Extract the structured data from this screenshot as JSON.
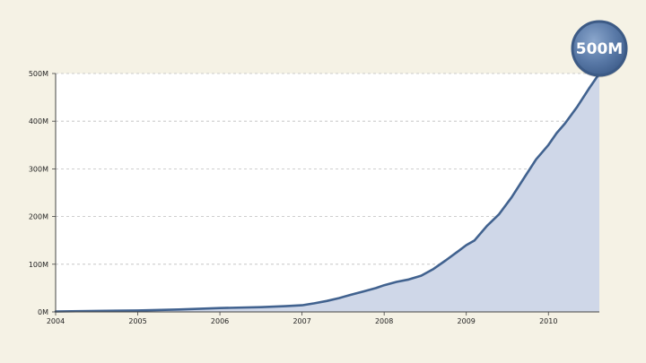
{
  "chart_data": {
    "type": "area",
    "title": "",
    "xlabel": "",
    "ylabel": "",
    "x_ticks": [
      2004,
      2005,
      2006,
      2007,
      2008,
      2009,
      2010
    ],
    "y_ticks": [
      0,
      100,
      200,
      300,
      400,
      500
    ],
    "y_tick_labels": [
      "0M",
      "100M",
      "200M",
      "300M",
      "400M",
      "500M"
    ],
    "xlim": [
      2004.0,
      2010.62
    ],
    "ylim": [
      0,
      500
    ],
    "grid": true,
    "series": [
      {
        "color": "#41628f",
        "fill_color": "#cfd7e8",
        "x": [
          2004.0,
          2004.5,
          2005.0,
          2005.5,
          2006.0,
          2006.5,
          2006.8,
          2007.0,
          2007.15,
          2007.3,
          2007.45,
          2007.6,
          2007.75,
          2007.9,
          2008.0,
          2008.15,
          2008.3,
          2008.45,
          2008.6,
          2008.75,
          2008.9,
          2009.0,
          2009.1,
          2009.25,
          2009.4,
          2009.55,
          2009.7,
          2009.85,
          2010.0,
          2010.1,
          2010.2,
          2010.35,
          2010.5,
          2010.62
        ],
        "values": [
          1,
          2,
          3,
          5,
          8,
          10,
          12,
          14,
          18,
          23,
          29,
          36,
          43,
          50,
          56,
          63,
          68,
          76,
          90,
          108,
          127,
          140,
          150,
          180,
          205,
          240,
          280,
          320,
          350,
          375,
          395,
          430,
          470,
          500
        ]
      }
    ],
    "annotations": [
      {
        "text": "500M",
        "x": 2010.62,
        "y": 500
      }
    ]
  }
}
